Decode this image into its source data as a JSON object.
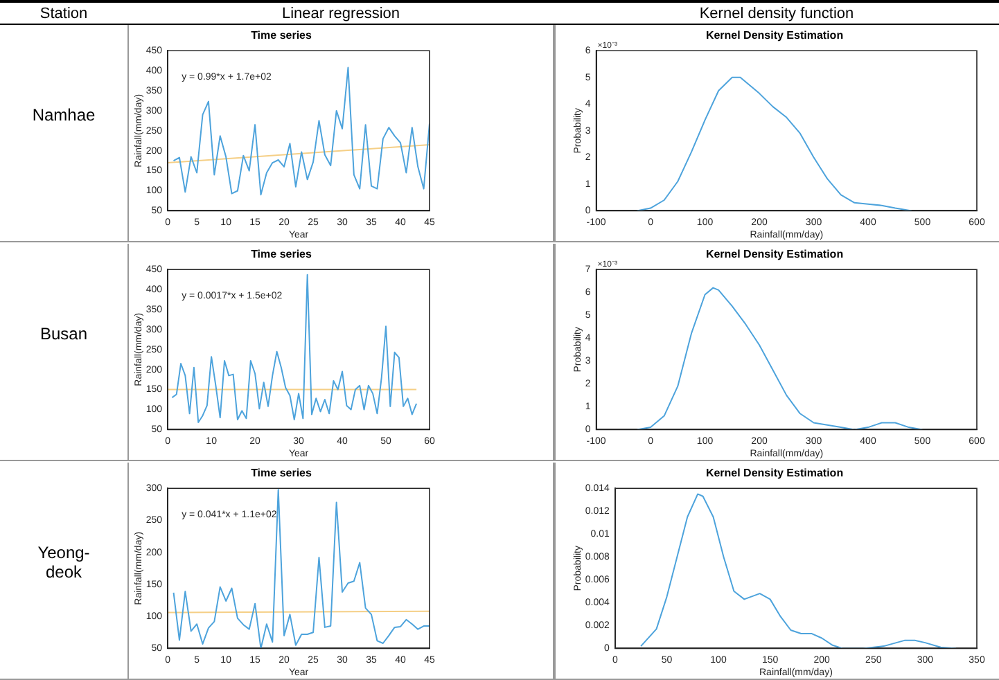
{
  "chart_data": [
    {
      "type": "other",
      "annotations": [
        "Station",
        "Linear regression",
        "Kernel density function"
      ]
    },
    {
      "type": "line",
      "title": "Time series",
      "xlabel": "Year",
      "ylabel": "Rainfall(mm/day)",
      "annotations": [
        "y = 0.99*x + 1.7e+02",
        "Namhae"
      ],
      "xlim": [
        0,
        45
      ],
      "xticks": [
        0,
        5,
        10,
        15,
        20,
        25,
        30,
        35,
        40,
        45
      ],
      "ylim": [
        50,
        450
      ],
      "yticks": [
        50,
        100,
        150,
        200,
        250,
        300,
        350,
        400,
        450
      ],
      "series": [
        {
          "color": "#4da3dc",
          "x": [
            1,
            2,
            3,
            4,
            5,
            6,
            7,
            8,
            9,
            10,
            11,
            12,
            13,
            14,
            15,
            16,
            17,
            18,
            19,
            20,
            21,
            22,
            23,
            24,
            25,
            26,
            27,
            28,
            29,
            30,
            31,
            32,
            33,
            34,
            35,
            36,
            37,
            38,
            39,
            40,
            41,
            42,
            43,
            44,
            45
          ],
          "values": [
            175,
            183,
            97,
            185,
            145,
            290,
            323,
            140,
            237,
            185,
            93,
            100,
            188,
            150,
            265,
            90,
            145,
            170,
            177,
            160,
            218,
            110,
            197,
            128,
            172,
            275,
            190,
            163,
            300,
            255,
            408,
            140,
            105,
            265,
            112,
            105,
            230,
            258,
            237,
            220,
            145,
            258,
            160,
            105,
            268
          ]
        },
        {
          "color": "#f5cf86",
          "x": [
            0,
            45
          ],
          "values": [
            170,
            215
          ]
        }
      ]
    },
    {
      "type": "line",
      "title": "Kernel Density Estimation",
      "xlabel": "Rainfall(mm/day)",
      "ylabel": "Probability",
      "annotations": [
        "×10⁻³"
      ],
      "xlim": [
        -100,
        600
      ],
      "xticks": [
        -100,
        0,
        100,
        200,
        300,
        400,
        500,
        600
      ],
      "ylim": [
        0,
        6
      ],
      "yticks": [
        0,
        1,
        2,
        3,
        4,
        5,
        6
      ],
      "series": [
        {
          "color": "#4da3dc",
          "x": [
            -25,
            0,
            25,
            50,
            75,
            100,
            125,
            150,
            165,
            200,
            225,
            250,
            275,
            300,
            325,
            350,
            375,
            400,
            425,
            450,
            480
          ],
          "values": [
            0,
            0.1,
            0.4,
            1.1,
            2.2,
            3.4,
            4.5,
            5,
            5,
            4.4,
            3.9,
            3.5,
            2.9,
            2,
            1.2,
            0.6,
            0.3,
            0.25,
            0.2,
            0.1,
            0
          ]
        }
      ]
    },
    {
      "type": "line",
      "title": "Time series",
      "xlabel": "Year",
      "ylabel": "Rainfall(mm/day)",
      "annotations": [
        "y = 0.0017*x + 1.5e+02",
        "Busan"
      ],
      "xlim": [
        0,
        60
      ],
      "xticks": [
        0,
        10,
        20,
        30,
        40,
        50,
        60
      ],
      "ylim": [
        50,
        450
      ],
      "yticks": [
        50,
        100,
        150,
        200,
        250,
        300,
        350,
        400,
        450
      ],
      "series": [
        {
          "color": "#4da3dc",
          "x": [
            1,
            2,
            3,
            4,
            5,
            6,
            7,
            8,
            9,
            10,
            11,
            12,
            13,
            14,
            15,
            16,
            17,
            18,
            19,
            20,
            21,
            22,
            23,
            24,
            25,
            26,
            27,
            28,
            29,
            30,
            31,
            32,
            33,
            34,
            35,
            36,
            37,
            38,
            39,
            40,
            41,
            42,
            43,
            44,
            45,
            46,
            47,
            48,
            49,
            50,
            51,
            52,
            53,
            54,
            55,
            56,
            57
          ],
          "values": [
            130,
            138,
            215,
            185,
            90,
            205,
            68,
            85,
            110,
            232,
            160,
            80,
            222,
            185,
            188,
            75,
            97,
            78,
            222,
            190,
            102,
            168,
            108,
            185,
            245,
            205,
            155,
            135,
            75,
            140,
            78,
            437,
            88,
            128,
            95,
            125,
            90,
            172,
            150,
            195,
            110,
            100,
            150,
            160,
            100,
            160,
            140,
            90,
            180,
            308,
            108,
            243,
            230,
            108,
            128,
            88,
            115
          ]
        },
        {
          "color": "#f5cf86",
          "x": [
            0,
            57
          ],
          "values": [
            150,
            150
          ]
        }
      ]
    },
    {
      "type": "line",
      "title": "Kernel Density Estimation",
      "xlabel": "Rainfall(mm/day)",
      "ylabel": "Probability",
      "annotations": [
        "×10⁻³"
      ],
      "xlim": [
        -100,
        600
      ],
      "xticks": [
        -100,
        0,
        100,
        200,
        300,
        400,
        500,
        600
      ],
      "ylim": [
        0,
        7
      ],
      "yticks": [
        0,
        1,
        2,
        3,
        4,
        5,
        6,
        7
      ],
      "series": [
        {
          "color": "#4da3dc",
          "x": [
            -25,
            0,
            25,
            50,
            75,
            100,
            115,
            125,
            150,
            175,
            200,
            225,
            250,
            275,
            300,
            325,
            350,
            375,
            400,
            425,
            450,
            475,
            500
          ],
          "values": [
            0,
            0.1,
            0.6,
            1.9,
            4.2,
            5.9,
            6.2,
            6.1,
            5.4,
            4.6,
            3.7,
            2.6,
            1.5,
            0.7,
            0.3,
            0.2,
            0.1,
            0,
            0.1,
            0.3,
            0.3,
            0.1,
            0
          ]
        }
      ]
    },
    {
      "type": "line",
      "title": "Time series",
      "xlabel": "Year",
      "ylabel": "Rainfall(mm/day)",
      "annotations": [
        "y = 0.041*x + 1.1e+02",
        "Yeong-\ndeok"
      ],
      "xlim": [
        0,
        45
      ],
      "xticks": [
        0,
        5,
        10,
        15,
        20,
        25,
        30,
        35,
        40,
        45
      ],
      "ylim": [
        50,
        300
      ],
      "yticks": [
        50,
        100,
        150,
        200,
        250,
        300
      ],
      "series": [
        {
          "color": "#4da3dc",
          "x": [
            1,
            2,
            3,
            4,
            5,
            6,
            7,
            8,
            9,
            10,
            11,
            12,
            13,
            14,
            15,
            16,
            17,
            18,
            19,
            20,
            21,
            22,
            23,
            24,
            25,
            26,
            27,
            28,
            29,
            30,
            31,
            32,
            33,
            34,
            35,
            36,
            37,
            38,
            39,
            40,
            41,
            42,
            43,
            44,
            45
          ],
          "values": [
            137,
            63,
            139,
            77,
            88,
            57,
            82,
            92,
            146,
            124,
            144,
            97,
            87,
            80,
            120,
            50,
            88,
            60,
            298,
            70,
            103,
            55,
            72,
            72,
            75,
            192,
            83,
            85,
            278,
            138,
            152,
            155,
            184,
            113,
            103,
            62,
            58,
            70,
            83,
            84,
            95,
            88,
            80,
            85,
            85
          ]
        },
        {
          "color": "#f5cf86",
          "x": [
            0,
            45
          ],
          "values": [
            106,
            108
          ]
        }
      ]
    },
    {
      "type": "line",
      "title": "Kernel Density Estimation",
      "xlabel": "Rainfall(mm/day)",
      "ylabel": "Probability",
      "xlim": [
        0,
        350
      ],
      "xticks": [
        0,
        50,
        100,
        150,
        200,
        250,
        300,
        350
      ],
      "ylim": [
        0,
        0.014
      ],
      "yticks": [
        0,
        0.002,
        0.004,
        0.006,
        0.008,
        0.01,
        0.012,
        0.014
      ],
      "series": [
        {
          "color": "#4da3dc",
          "x": [
            25,
            40,
            50,
            60,
            70,
            80,
            85,
            95,
            105,
            115,
            125,
            140,
            150,
            160,
            170,
            180,
            190,
            200,
            210,
            220,
            240,
            260,
            280,
            290,
            300,
            315,
            330
          ],
          "values": [
            0.0002,
            0.0017,
            0.0045,
            0.008,
            0.0115,
            0.0135,
            0.0133,
            0.0115,
            0.008,
            0.005,
            0.0043,
            0.0048,
            0.0043,
            0.0028,
            0.0016,
            0.0013,
            0.0013,
            0.0009,
            0.0003,
            0,
            0,
            0.0002,
            0.0007,
            0.0007,
            0.0005,
            0.0001,
            0
          ]
        }
      ]
    }
  ]
}
